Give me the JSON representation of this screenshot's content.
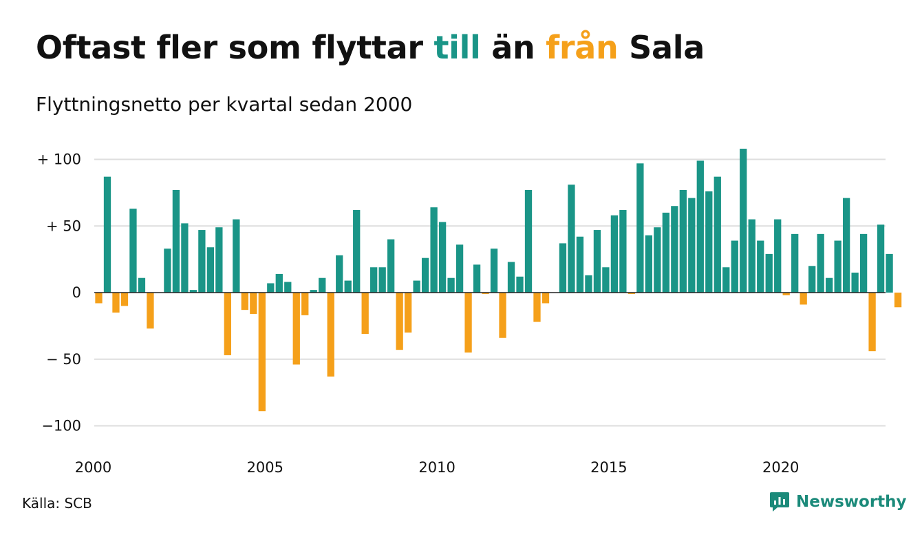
{
  "title": {
    "part1": "Oftast fler som flyttar ",
    "highlight_in": "till",
    "part2": " än ",
    "highlight_out": "från",
    "part3": " Sala"
  },
  "subtitle": "Flyttningsnetto per kvartal sedan 2000",
  "source": "Källa: SCB",
  "brand": "Newsworthy",
  "colors": {
    "positive": "#1a9587",
    "negative": "#f5a01a",
    "grid": "#dedede",
    "baseline": "#222222",
    "brand": "#1b8a7a"
  },
  "chart_data": {
    "type": "bar",
    "x_start": "2000 Q1",
    "x_ticks": [
      "2000",
      "2005",
      "2010",
      "2015",
      "2020"
    ],
    "y_ticks": [
      "+ 100",
      "+  50",
      "0",
      "− 50",
      "−100"
    ],
    "y_tick_values": [
      100,
      50,
      0,
      -50,
      -100
    ],
    "ylim": [
      -110,
      110
    ],
    "values": [
      -8,
      87,
      -15,
      -10,
      63,
      11,
      -27,
      0,
      33,
      77,
      52,
      2,
      47,
      34,
      49,
      -47,
      55,
      -13,
      -16,
      -89,
      7,
      14,
      8,
      -54,
      -17,
      2,
      11,
      -63,
      28,
      9,
      62,
      -31,
      19,
      19,
      40,
      -43,
      -30,
      9,
      26,
      64,
      53,
      11,
      36,
      -45,
      21,
      -1,
      33,
      -34,
      23,
      12,
      77,
      -22,
      -8,
      0,
      37,
      81,
      42,
      13,
      47,
      19,
      58,
      62,
      -1,
      97,
      43,
      49,
      60,
      65,
      77,
      71,
      99,
      76,
      87,
      19,
      39,
      108,
      55,
      39,
      29,
      55,
      -2,
      44,
      -9,
      20,
      44,
      11,
      39,
      71,
      15,
      44,
      -44,
      51,
      29,
      -11
    ]
  }
}
